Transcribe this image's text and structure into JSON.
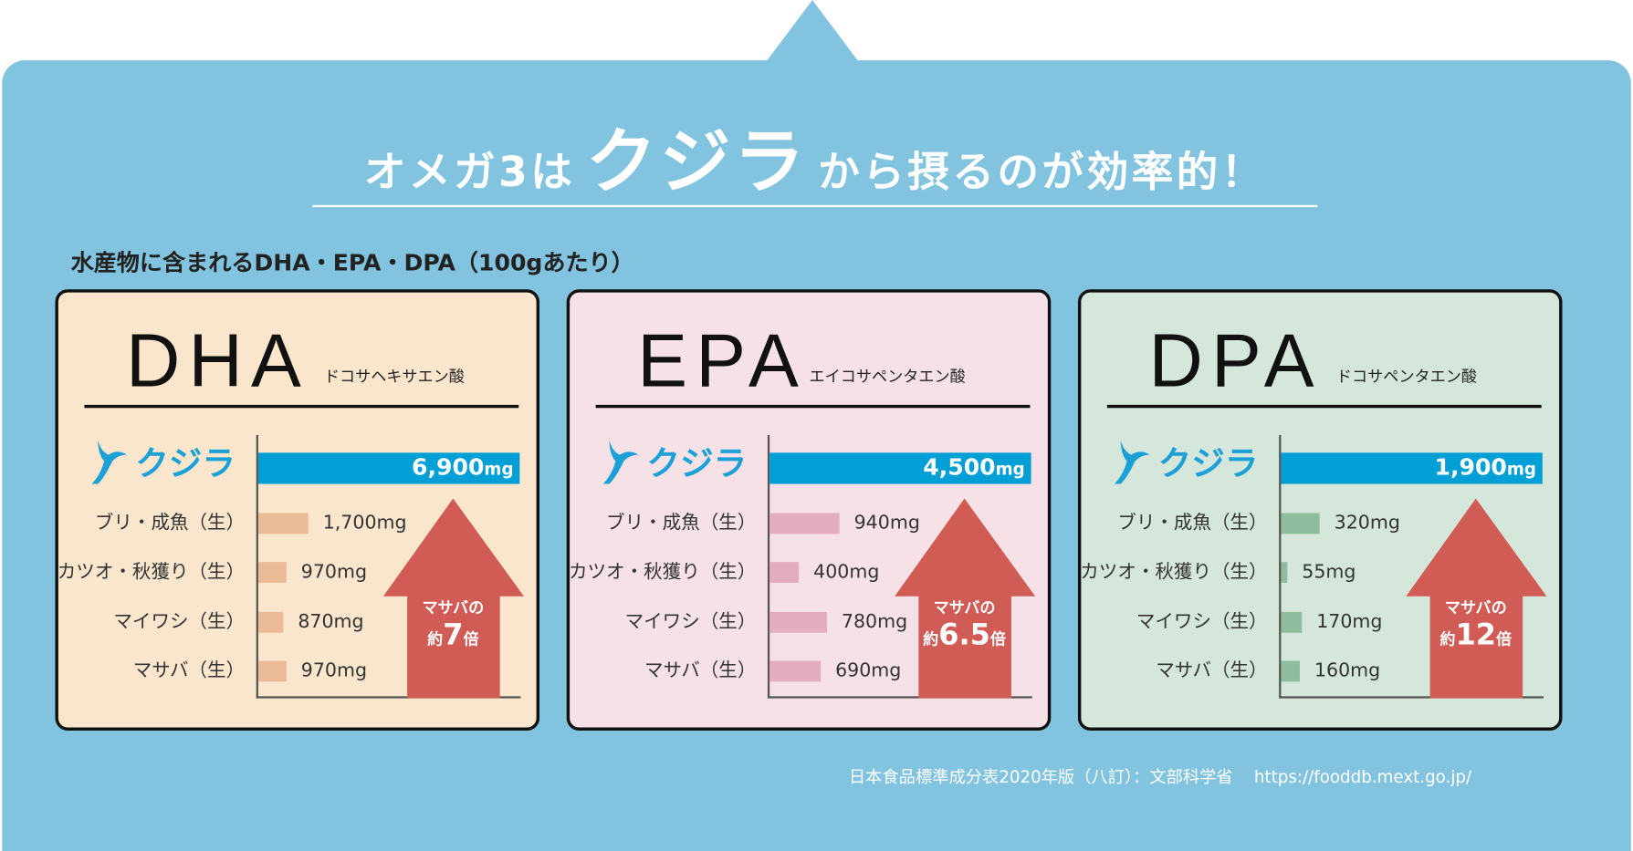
{
  "title": {
    "pre": "オメガ3は",
    "highlight": "クジラ",
    "post": "から摂るのが効率的！"
  },
  "subtitle": "水産物に含まれるDHA・EPA・DPA（100gあたり）",
  "colors": {
    "background": "#82c4e0",
    "whale_bar": "#00a0d6",
    "arrow": "#d05c55"
  },
  "panels": [
    {
      "name": "DHA",
      "full_name": "ドコサヘキサエン酸",
      "bg": "#f9e6cc",
      "bar_color": "#ebbb98",
      "whale": {
        "label": "クジラ",
        "value": "6,900",
        "unit": "mg"
      },
      "rows": [
        {
          "label": "ブリ・成魚（生）",
          "value": 1700,
          "text": "1,700mg"
        },
        {
          "label": "カツオ・秋獲り（生）",
          "value": 970,
          "text": "970mg"
        },
        {
          "label": "マイワシ（生）",
          "value": 870,
          "text": "870mg"
        },
        {
          "label": "マサバ（生）",
          "value": 970,
          "text": "970mg"
        }
      ],
      "arrow": {
        "line1": "マサバの",
        "pre": "約",
        "num": "7",
        "post": "倍"
      }
    },
    {
      "name": "EPA",
      "full_name": "エイコサペンタエン酸",
      "bg": "#f5e1e6",
      "bar_color": "#e3adbe",
      "whale": {
        "label": "クジラ",
        "value": "4,500",
        "unit": "mg"
      },
      "rows": [
        {
          "label": "ブリ・成魚（生）",
          "value": 940,
          "text": "940mg"
        },
        {
          "label": "カツオ・秋獲り（生）",
          "value": 400,
          "text": "400mg"
        },
        {
          "label": "マイワシ（生）",
          "value": 780,
          "text": "780mg"
        },
        {
          "label": "マサバ（生）",
          "value": 690,
          "text": "690mg"
        }
      ],
      "arrow": {
        "line1": "マサバの",
        "pre": "約",
        "num": "6.5",
        "post": "倍"
      }
    },
    {
      "name": "DPA",
      "full_name": "ドコサペンタエン酸",
      "bg": "#d5e6da",
      "bar_color": "#8ebd9d",
      "whale": {
        "label": "クジラ",
        "value": "1,900",
        "unit": "mg"
      },
      "rows": [
        {
          "label": "ブリ・成魚（生）",
          "value": 320,
          "text": "320mg"
        },
        {
          "label": "カツオ・秋獲り（生）",
          "value": 55,
          "text": "55mg"
        },
        {
          "label": "マイワシ（生）",
          "value": 170,
          "text": "170mg"
        },
        {
          "label": "マサバ（生）",
          "value": 160,
          "text": "160mg"
        }
      ],
      "arrow": {
        "line1": "マサバの",
        "pre": "約",
        "num": "12",
        "post": "倍"
      }
    }
  ],
  "footer": {
    "source": "日本食品標準成分表2020年版（八訂）：文部科学省",
    "url": "https://fooddb.mext.go.jp/"
  }
}
